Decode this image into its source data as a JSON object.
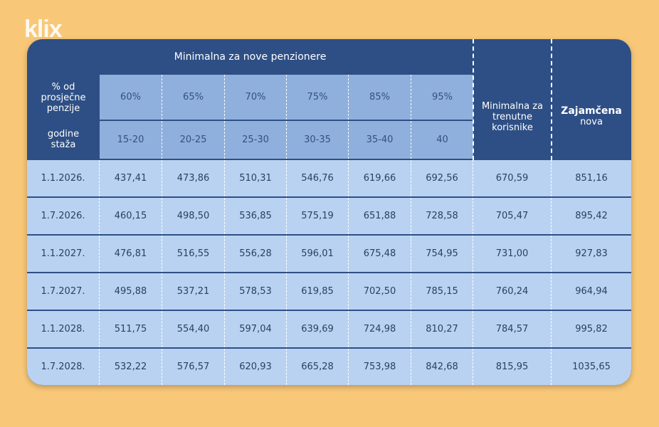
{
  "logo": "klix",
  "header": {
    "group_title": "Minimalna za nove penzionere",
    "row1_label": "% od prosječne penzije",
    "row2_label": "godine staža",
    "percents": [
      "60%",
      "65%",
      "70%",
      "75%",
      "85%",
      "95%"
    ],
    "years": [
      "15-20",
      "20-25",
      "25-30",
      "30-35",
      "35-40",
      "40"
    ],
    "col_current": "Minimalna za trenutne korisnike",
    "col_guaranteed_bold": "Zajamčena",
    "col_guaranteed_rest": "nova"
  },
  "rows": [
    {
      "date": "1.1.2026.",
      "values": [
        "437,41",
        "473,86",
        "510,31",
        "546,76",
        "619,66",
        "692,56",
        "670,59",
        "851,16"
      ]
    },
    {
      "date": "1.7.2026.",
      "values": [
        "460,15",
        "498,50",
        "536,85",
        "575,19",
        "651,88",
        "728,58",
        "705,47",
        "895,42"
      ]
    },
    {
      "date": "1.1.2027.",
      "values": [
        "476,81",
        "516,55",
        "556,28",
        "596,01",
        "675,48",
        "754,95",
        "731,00",
        "927,83"
      ]
    },
    {
      "date": "1.7.2027.",
      "values": [
        "495,88",
        "537,21",
        "578,53",
        "619,85",
        "702,50",
        "785,15",
        "760,24",
        "964,94"
      ]
    },
    {
      "date": "1.1.2028.",
      "values": [
        "511,75",
        "554,40",
        "597,04",
        "639,69",
        "724,98",
        "810,27",
        "784,57",
        "995,82"
      ]
    },
    {
      "date": "1.7.2028.",
      "values": [
        "532,22",
        "576,57",
        "620,93",
        "665,28",
        "753,98",
        "842,68",
        "815,95",
        "1035,65"
      ]
    }
  ]
}
